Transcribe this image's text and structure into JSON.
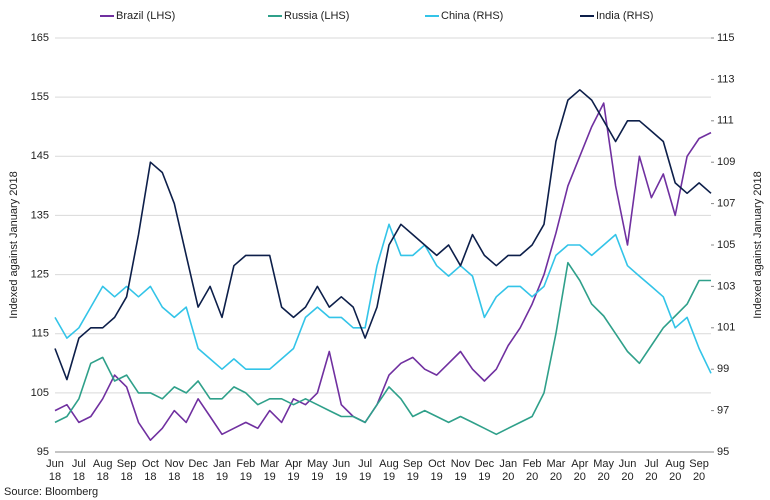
{
  "chart_data": {
    "type": "line",
    "categories": [
      "Jun 18",
      null,
      "Jul 18",
      null,
      "Aug 18",
      null,
      "Sep 18",
      null,
      "Oct 18",
      null,
      "Nov 18",
      null,
      "Dec 18",
      null,
      "Jan 19",
      null,
      "Feb 19",
      null,
      "Mar 19",
      null,
      "Apr 19",
      null,
      "May 19",
      null,
      "Jun 19",
      null,
      "Jul 19",
      null,
      "Aug 19",
      null,
      "Sep 19",
      null,
      "Oct 19",
      null,
      "Nov 19",
      null,
      "Dec 19",
      null,
      "Jan 20",
      null,
      "Feb 20",
      null,
      "Mar 20",
      null,
      "Apr 20",
      null,
      "May 20",
      null,
      "Jun 20",
      null,
      "Jul 20",
      null,
      "Aug 20",
      null,
      "Sep 20",
      null
    ],
    "series": [
      {
        "name": "Brazil (LHS)",
        "color": "#7030a0",
        "values": [
          102,
          103,
          100,
          101,
          104,
          108,
          106,
          100,
          97,
          99,
          102,
          100,
          104,
          101,
          98,
          99,
          100,
          99,
          102,
          100,
          104,
          103,
          105,
          112,
          103,
          101,
          100,
          103,
          108,
          110,
          111,
          109,
          108,
          110,
          112,
          109,
          107,
          109,
          113,
          116,
          120,
          125,
          132,
          140,
          145,
          150,
          154,
          140,
          130,
          145,
          138,
          142,
          135,
          145,
          148,
          149
        ]
      },
      {
        "name": "Russia (LHS)",
        "color": "#2fa08a",
        "values": [
          100,
          101,
          104,
          110,
          111,
          107,
          108,
          105,
          105,
          104,
          106,
          105,
          107,
          104,
          104,
          106,
          105,
          103,
          104,
          104,
          103,
          104,
          103,
          102,
          101,
          101,
          100,
          103,
          106,
          104,
          101,
          102,
          101,
          100,
          101,
          100,
          99,
          98,
          99,
          100,
          101,
          105,
          115,
          127,
          124,
          120,
          118,
          115,
          112,
          110,
          113,
          116,
          118,
          120,
          124,
          124
        ]
      },
      {
        "name": "China (RHS)",
        "color": "#33c4e8",
        "axis": "y2",
        "values": [
          101.5,
          100.5,
          101,
          102,
          103,
          102.5,
          103,
          102.5,
          103,
          102,
          101.5,
          102,
          100,
          99.5,
          99,
          99.5,
          99,
          99,
          99,
          99.5,
          100,
          101.5,
          102,
          101.5,
          101.5,
          101,
          101,
          104,
          106,
          104.5,
          104.5,
          105,
          104,
          103.5,
          104,
          103.5,
          101.5,
          102.5,
          103,
          103,
          102.5,
          103,
          104.5,
          105,
          105,
          104.5,
          105,
          105.5,
          104,
          103.5,
          103,
          102.5,
          101,
          101.5,
          100,
          98.8
        ]
      },
      {
        "name": "India (RHS)",
        "color": "#0d1f4a",
        "axis": "y2",
        "values": [
          100,
          98.5,
          100.5,
          101,
          101,
          101.5,
          102.5,
          105.5,
          109,
          108.5,
          107,
          104.5,
          102,
          103,
          101.5,
          104,
          104.5,
          104.5,
          104.5,
          102,
          101.5,
          102,
          103,
          102,
          102.5,
          102,
          100.5,
          102,
          105,
          106,
          105.5,
          105,
          104.5,
          105,
          104,
          105.5,
          104.5,
          104,
          104.5,
          104.5,
          105,
          106,
          110,
          112,
          112.5,
          112,
          111,
          110,
          111,
          111,
          110.5,
          110,
          108,
          107.5,
          108,
          107.5
        ]
      }
    ],
    "ylabel": "Indexed against January 2018",
    "y2label": "Indexed against January 2018",
    "ylim": [
      95,
      165
    ],
    "yticks": [
      95,
      105,
      115,
      125,
      135,
      145,
      155,
      165
    ],
    "y2lim": [
      95,
      115
    ],
    "y2ticks": [
      95,
      97,
      99,
      101,
      103,
      105,
      107,
      109,
      111,
      113,
      115
    ],
    "grid": true,
    "legend": "top",
    "source": "Source: Bloomberg"
  }
}
